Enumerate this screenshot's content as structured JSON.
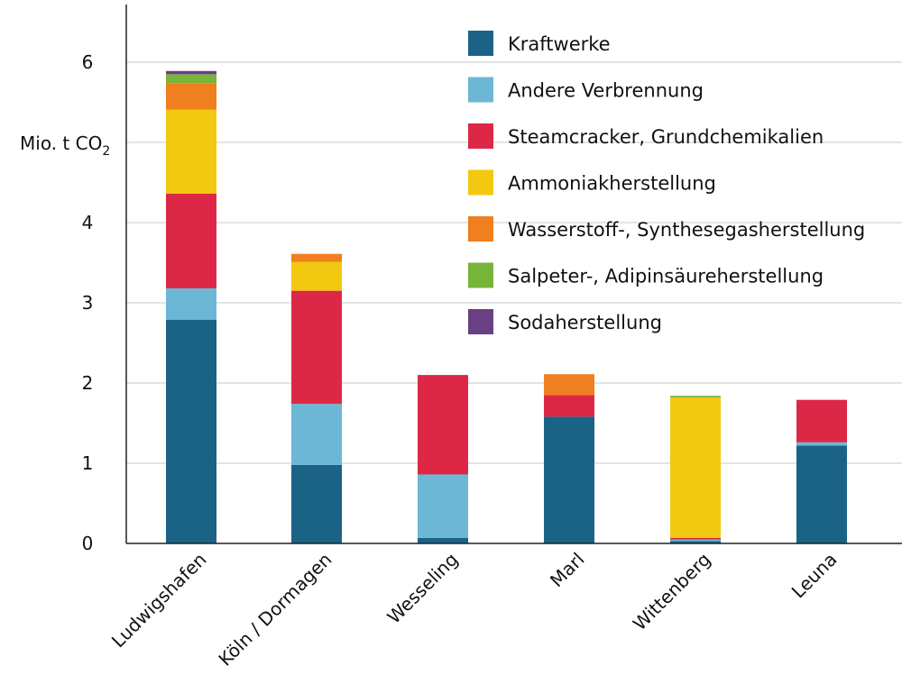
{
  "chart_data": {
    "type": "bar",
    "stacked": true,
    "categories": [
      "Ludwigshafen",
      "Köln / Dormagen",
      "Wesseling",
      "Marl",
      "Wittenberg",
      "Leuna"
    ],
    "ylabel": "Mio. t CO",
    "ylabel_subscript": "2",
    "ylim": [
      0,
      6.5
    ],
    "yticks": [
      0,
      1,
      2,
      3,
      4,
      5,
      6
    ],
    "ytick_labels": [
      "0",
      "1",
      "2",
      "3",
      "4",
      "",
      "6"
    ],
    "grid": true,
    "legend_placement": "top-right",
    "series": [
      {
        "name": "Kraftwerke",
        "color": "#1a6387",
        "values": [
          2.79,
          0.98,
          0.07,
          1.58,
          0.03,
          1.22
        ]
      },
      {
        "name": "Andere Verbrennung",
        "color": "#6cb7d6",
        "values": [
          0.39,
          0.76,
          0.79,
          0.0,
          0.02,
          0.04
        ]
      },
      {
        "name": "Steamcracker, Grundchemikalien",
        "color": "#dc2846",
        "values": [
          1.18,
          1.41,
          1.24,
          0.27,
          0.02,
          0.53
        ]
      },
      {
        "name": "Ammoniakherstellung",
        "color": "#f2c811",
        "values": [
          1.05,
          0.36,
          0.0,
          0.0,
          1.75,
          0.0
        ]
      },
      {
        "name": "Wasserstoff-, Synthesegasherstellung",
        "color": "#ef7f1f",
        "values": [
          0.33,
          0.1,
          0.0,
          0.26,
          0.0,
          0.0
        ]
      },
      {
        "name": "Salpeter-, Adipinsäureherstellung",
        "color": "#76b43a",
        "values": [
          0.11,
          0.0,
          0.0,
          0.0,
          0.02,
          0.0
        ]
      },
      {
        "name": "Sodaherstellung",
        "color": "#6a3f83",
        "values": [
          0.04,
          0.0,
          0.0,
          0.0,
          0.0,
          0.0
        ]
      }
    ]
  }
}
